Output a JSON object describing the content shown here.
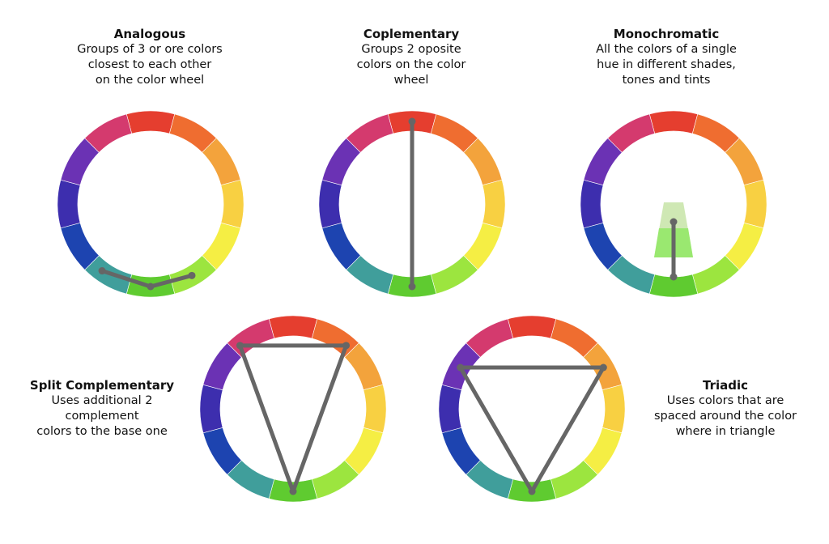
{
  "wheel_colors": [
    "#e53e2f",
    "#ef6d30",
    "#f3a33c",
    "#f8d042",
    "#f5ee44",
    "#9ce53f",
    "#5fcb30",
    "#409e9b",
    "#1d44b0",
    "#3d2eae",
    "#6b32b4",
    "#d43a6e"
  ],
  "mono_shade_color": "#cfe8b4",
  "mono_tint_color": "#9ae870",
  "line_color": "#666666",
  "schemes": [
    {
      "id": "analogous",
      "title": "Analogous",
      "description": "Groups of 3 or ore colors\nclosest to each other\non the color wheel"
    },
    {
      "id": "complementary",
      "title": "Coplementary",
      "description": "Groups 2 oposite\ncolors on the color\nwheel"
    },
    {
      "id": "monochromatic",
      "title": "Monochromatic",
      "description": "All the colors of a single\nhue in different shades,\ntones and tints"
    },
    {
      "id": "split",
      "title": "Split Complementary",
      "description": "Uses additional 2\ncomplement\ncolors to the base one"
    },
    {
      "id": "triadic",
      "title": "Triadic",
      "description": "Uses colors that are\nspaced around the color\nwhere in triangle"
    }
  ]
}
